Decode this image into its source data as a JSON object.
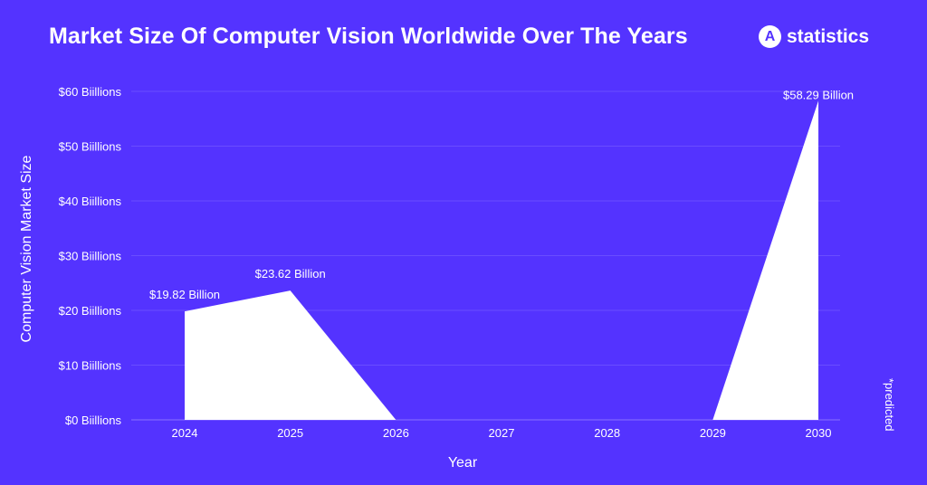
{
  "header": {
    "title": "Market Size Of Computer Vision Worldwide Over The Years",
    "brand": {
      "logo_letter": "A",
      "name": "statistics",
      "icon": "statistics-logo-icon"
    }
  },
  "colors": {
    "background": "#5433ff",
    "area": "#ffffff",
    "gridline": "#6a4dff",
    "text": "#ffffff"
  },
  "chart_data": {
    "type": "area",
    "title": "Market Size Of Computer Vision Worldwide Over The Years",
    "xlabel": "Year",
    "ylabel": "Computer Vision Market Size",
    "categories": [
      "2024",
      "2025",
      "2026",
      "2027",
      "2028",
      "2029",
      "2030"
    ],
    "series": [
      {
        "name": "Computer Vision Market Size",
        "values": [
          19.82,
          23.62,
          0,
          null,
          null,
          0,
          58.29
        ]
      }
    ],
    "data_labels": [
      "$19.82 Billion",
      "$23.62 Billion",
      "",
      "",
      "",
      "",
      "$58.29 Billion"
    ],
    "y_ticks": [
      0,
      10,
      20,
      30,
      40,
      50,
      60
    ],
    "y_tick_labels": [
      "$0 Biillions",
      "$10 Biillions",
      "$20 Biillions",
      "$30 Biillions",
      "$40 Biillions",
      "$50 Biillions",
      "$60 Biillions"
    ],
    "ylim": [
      0,
      60
    ],
    "grid": true,
    "legend": null,
    "annotations": [
      "*predicted"
    ]
  }
}
